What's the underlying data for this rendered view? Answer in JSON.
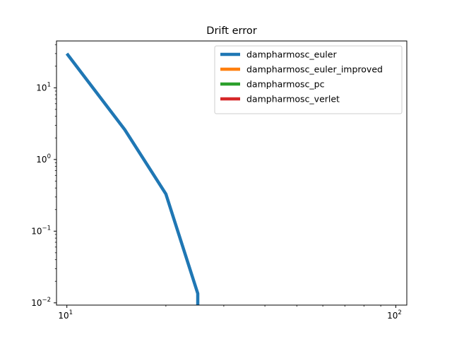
{
  "chart_data": {
    "type": "line",
    "title": "Drift error",
    "xlabel": "",
    "ylabel": "",
    "xscale": "log",
    "yscale": "log",
    "xlim": [
      9.3,
      108
    ],
    "ylim": [
      0.0093,
      45
    ],
    "grid": false,
    "legend_position": "top-right",
    "x_ticks": [
      {
        "value": 10,
        "base": "10",
        "exp": "1"
      },
      {
        "value": 100,
        "base": "10",
        "exp": "2"
      }
    ],
    "y_ticks": [
      {
        "value": 10,
        "base": "10",
        "exp": "1"
      },
      {
        "value": 1,
        "base": "10",
        "exp": "0"
      },
      {
        "value": 0.1,
        "base": "10",
        "exp": "−1"
      },
      {
        "value": 0.01,
        "base": "10",
        "exp": "−2"
      }
    ],
    "series": [
      {
        "name": "dampharmosc_euler",
        "color": "#1f77b4",
        "x": [
          10,
          15,
          20,
          25,
          25
        ],
        "y": [
          30,
          2.6,
          0.33,
          0.0135,
          0.0093
        ]
      },
      {
        "name": "dampharmosc_euler_improved",
        "color": "#ff7f0e",
        "x": [],
        "y": []
      },
      {
        "name": "dampharmosc_pc",
        "color": "#2ca02c",
        "x": [],
        "y": []
      },
      {
        "name": "dampharmosc_verlet",
        "color": "#d62728",
        "x": [],
        "y": []
      }
    ]
  }
}
